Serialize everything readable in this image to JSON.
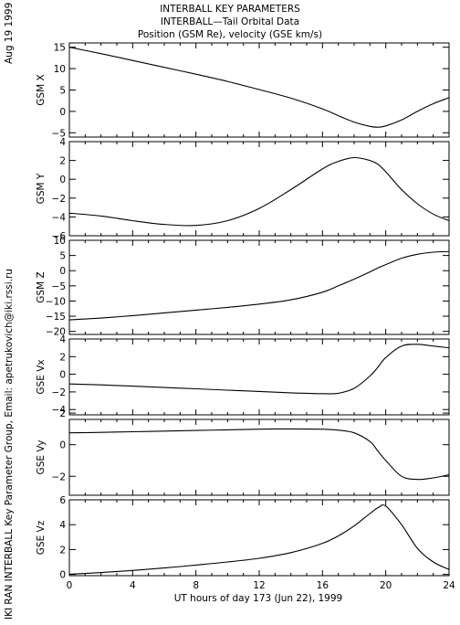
{
  "header": {
    "title": "INTERBALL KEY PARAMETERS",
    "subtitle": "INTERBALL—Tail Orbital Data",
    "caption": "Position (GSM Re), velocity (GSE km/s)"
  },
  "side_date": "Aug 19 1999",
  "side_credit": "IKI RAN INTERBALL Key Parameter Group, Email: apetrukovich@iki.rssi.ru",
  "chart_data": {
    "type": "line",
    "xlabel": "UT hours of day 173 (Jun 22), 1999",
    "xlim": [
      0,
      24
    ],
    "xticks": [
      0,
      4,
      8,
      12,
      16,
      20,
      24
    ],
    "x": [
      0,
      2,
      4,
      6,
      8,
      10,
      12,
      14,
      16,
      17,
      18,
      19,
      19.5,
      20,
      21,
      22,
      23,
      24
    ],
    "panels": [
      {
        "ylabel": "GSM X",
        "ylim": [
          -6,
          16
        ],
        "yticks": [
          -5,
          0,
          5,
          10,
          15
        ],
        "values": [
          15,
          13.5,
          11.9,
          10.3,
          8.7,
          7.0,
          5.1,
          3.1,
          0.6,
          -1.0,
          -2.5,
          -3.5,
          -3.7,
          -3.4,
          -2.0,
          0.0,
          1.8,
          3.2
        ]
      },
      {
        "ylabel": "GSM Y",
        "ylim": [
          -6,
          4
        ],
        "yticks": [
          -6,
          -4,
          -2,
          0,
          2,
          4
        ],
        "values": [
          -3.6,
          -3.9,
          -4.4,
          -4.8,
          -4.9,
          -4.4,
          -3.1,
          -1.1,
          1.1,
          1.9,
          2.3,
          2.0,
          1.6,
          0.8,
          -1.1,
          -2.6,
          -3.7,
          -4.4
        ]
      },
      {
        "ylabel": "GSM Z",
        "ylim": [
          -21,
          10
        ],
        "yticks": [
          -20,
          -15,
          -10,
          -5,
          0,
          5,
          10
        ],
        "values": [
          -16.2,
          -15.6,
          -14.8,
          -13.9,
          -13.0,
          -12.1,
          -11.0,
          -9.6,
          -7.1,
          -5.0,
          -2.8,
          -0.4,
          0.9,
          2.0,
          4.1,
          5.4,
          6.1,
          6.3
        ]
      },
      {
        "ylabel": "GSE Vx",
        "ylim": [
          -4.6,
          4
        ],
        "yticks": [
          -4,
          -2,
          0,
          2,
          4
        ],
        "values": [
          -1.1,
          -1.2,
          -1.35,
          -1.5,
          -1.65,
          -1.8,
          -1.95,
          -2.1,
          -2.2,
          -2.15,
          -1.6,
          -0.2,
          0.8,
          1.9,
          3.2,
          3.4,
          3.2,
          3.0
        ]
      },
      {
        "ylabel": "GSE Vy",
        "ylim": [
          -3.2,
          1.6
        ],
        "yticks": [
          -2,
          0,
          2
        ],
        "values": [
          0.75,
          0.78,
          0.82,
          0.86,
          0.9,
          0.94,
          0.98,
          1.0,
          0.98,
          0.92,
          0.75,
          0.2,
          -0.4,
          -1.0,
          -2.0,
          -2.2,
          -2.1,
          -1.9
        ]
      },
      {
        "ylabel": "GSE Vz",
        "ylim": [
          -0.1,
          6
        ],
        "yticks": [
          0,
          2,
          4,
          6
        ],
        "values": [
          0.02,
          0.15,
          0.32,
          0.52,
          0.75,
          1.0,
          1.3,
          1.75,
          2.5,
          3.1,
          3.9,
          4.9,
          5.35,
          5.5,
          4.0,
          2.1,
          1.0,
          0.4
        ]
      }
    ]
  }
}
